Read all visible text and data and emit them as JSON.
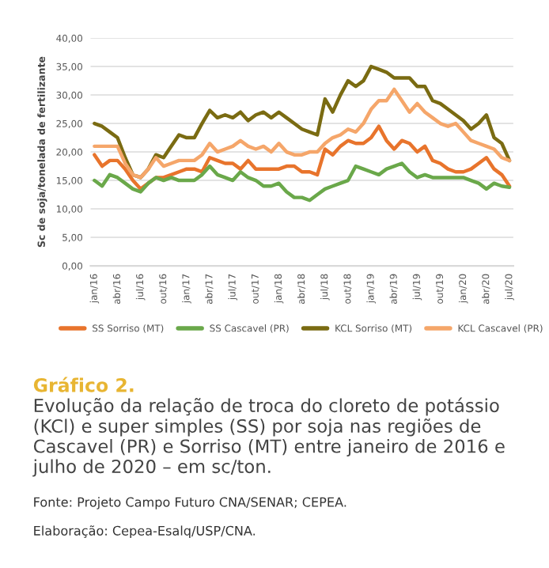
{
  "chart_data": {
    "type": "line",
    "title": "Gráfico 2.",
    "subtitle": "Evolução da relação de troca do cloreto de potássio (KCl) e super simples (SS) por soja nas regiões de Cascavel (PR) e Sorriso (MT) entre janeiro de 2016 e julho de 2020 – em sc/ton.",
    "ylabel": "Sc de soja/tonelada de fertilizante",
    "categories": [
      "jan/16",
      null,
      null,
      "abr/16",
      null,
      null,
      "jul/16",
      null,
      null,
      "out/16",
      null,
      null,
      "jan/17",
      null,
      null,
      "abr/17",
      null,
      null,
      "jul/17",
      null,
      null,
      "out/17",
      null,
      null,
      "jan/18",
      null,
      null,
      "abr/18",
      null,
      null,
      "jul/18",
      null,
      null,
      "out/18",
      null,
      null,
      "jan/19",
      null,
      null,
      "abr/19",
      null,
      null,
      "jul/19",
      null,
      null,
      "out/19",
      null,
      null,
      "jan/20",
      null,
      null,
      "abr/20",
      null,
      null,
      "jul/20"
    ],
    "series": [
      {
        "name": "SS Sorriso (MT)",
        "color": "#e8742c",
        "values": [
          19.5,
          17.5,
          18.5,
          18.5,
          17,
          15,
          13.5,
          14.5,
          15.5,
          15.5,
          16,
          16.5,
          17,
          17,
          16.5,
          19,
          18.5,
          18,
          18,
          17,
          18.5,
          17,
          17,
          17,
          17,
          17.5,
          17.5,
          16.5,
          16.5,
          16,
          20.5,
          19.5,
          21,
          22,
          21.5,
          21.5,
          22.5,
          24.5,
          22,
          20.5,
          22,
          21.5,
          20,
          21,
          18.5,
          18,
          17,
          16.5,
          16.5,
          17,
          18,
          19,
          17,
          16,
          14
        ]
      },
      {
        "name": "SS Cascavel (PR)",
        "color": "#6aa84a",
        "values": [
          15,
          14,
          16,
          15.5,
          14.5,
          13.5,
          13,
          14.5,
          15.5,
          15,
          15.5,
          15,
          15,
          15,
          16,
          17.5,
          16,
          15.5,
          15,
          16.5,
          15.5,
          15,
          14,
          14,
          14.5,
          13,
          12,
          12,
          11.5,
          12.5,
          13.5,
          14,
          14.5,
          15,
          17.5,
          17,
          16.5,
          16,
          17,
          17.5,
          18,
          16.5,
          15.5,
          16,
          15.5,
          15.5,
          15.5,
          15.5,
          15.5,
          15,
          14.5,
          13.5,
          14.5,
          14,
          13.8
        ]
      },
      {
        "name": "KCL Sorriso (MT)",
        "color": "#7a6b12",
        "values": [
          25,
          24.5,
          23.5,
          22.5,
          19,
          16,
          15.5,
          17,
          19.5,
          19,
          21,
          23,
          22.5,
          22.5,
          25,
          27.3,
          26,
          26.5,
          26,
          27,
          25.5,
          26.5,
          27,
          26,
          27,
          26,
          25,
          24,
          23.5,
          23,
          29.3,
          27,
          30,
          32.5,
          31.5,
          32.5,
          35,
          34.5,
          34,
          33,
          33,
          33,
          31.5,
          31.5,
          29,
          28.5,
          27.5,
          26.5,
          25.5,
          24,
          25,
          26.5,
          22.5,
          21.5,
          18.5
        ]
      },
      {
        "name": "KCL Cascavel (PR)",
        "color": "#f5a66a",
        "values": [
          21,
          21,
          21,
          21,
          18,
          16,
          15.5,
          17,
          19,
          17.5,
          18,
          18.5,
          18.5,
          18.5,
          19.5,
          21.5,
          20,
          20.5,
          21,
          22,
          21,
          20.5,
          21,
          20,
          21.5,
          20,
          19.5,
          19.5,
          20,
          20,
          21.5,
          22.5,
          23,
          24,
          23.5,
          25,
          27.5,
          29,
          29,
          31,
          29,
          27,
          28.5,
          27,
          26,
          25,
          24.5,
          25,
          23.5,
          22,
          21.5,
          21,
          20.5,
          19,
          18.5
        ]
      }
    ],
    "ylim": [
      0,
      40
    ],
    "yticks": [
      {
        "value": 0,
        "label": "0,00"
      },
      {
        "value": 5,
        "label": "5,00"
      },
      {
        "value": 10,
        "label": "10,00"
      },
      {
        "value": 15,
        "label": "15,00"
      },
      {
        "value": 20,
        "label": "20,00"
      },
      {
        "value": 25,
        "label": "25,00"
      },
      {
        "value": 30,
        "label": "30,00"
      },
      {
        "value": 35,
        "label": "35,00"
      },
      {
        "value": 40,
        "label": "40,00"
      }
    ],
    "grid": "y",
    "legend": "bottom",
    "marker": "none",
    "line_style": "solid",
    "annotations": [
      "Fonte: Projeto Campo Futuro CNA/SENAR; CEPEA.",
      "Elaboração: Cepea-Esalq/USP/CNA."
    ]
  }
}
